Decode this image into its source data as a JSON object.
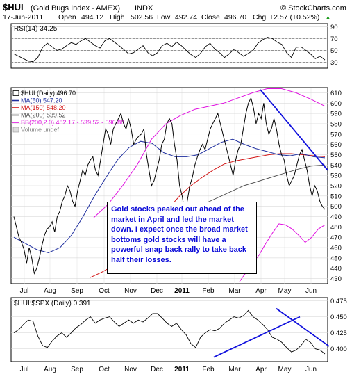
{
  "header": {
    "symbol": "$HUI",
    "description": "(Gold Bugs Index - AMEX)",
    "exchange": "INDX",
    "watermark": "© StockCharts.com",
    "date": "17-Jun-2011",
    "open_label": "Open",
    "open": "494.12",
    "high_label": "High",
    "high": "502.56",
    "low_label": "Low",
    "low": "492.74",
    "close_label": "Close",
    "close": "496.70",
    "chg_label": "Chg",
    "chg": "+2.57 (+0.52%)",
    "chg_arrow": "▲"
  },
  "colors": {
    "price": "#000000",
    "ma50": "#1f2f9f",
    "ma150": "#d21414",
    "ma200": "#555555",
    "bb": "#e010e0",
    "trendline": "#1111dd",
    "note_text": "#0a0ad8",
    "grid": "#d0d0d0"
  },
  "chart_data": [
    {
      "type": "line",
      "title": "RSI(14) 34.25",
      "series": [
        {
          "name": "RSI(14)",
          "values": [
            44,
            40,
            36,
            32,
            31,
            38,
            55,
            62,
            56,
            50,
            52,
            58,
            63,
            60,
            66,
            70,
            64,
            58,
            54,
            66,
            70,
            64,
            58,
            51,
            44,
            46,
            52,
            58,
            46,
            41,
            46,
            58,
            62,
            56,
            64,
            58,
            50,
            43,
            38,
            45,
            56,
            62,
            52,
            46,
            38,
            44,
            52,
            46,
            40,
            45,
            50,
            62,
            68,
            72,
            70,
            64,
            60,
            46,
            38,
            55,
            56,
            50,
            44,
            36,
            40,
            34
          ]
        }
      ],
      "y_ticks": [
        90,
        70,
        50,
        30
      ],
      "ylim": [
        20,
        95
      ],
      "reference_lines": [
        70,
        50,
        30
      ]
    },
    {
      "type": "line",
      "title": "$HUI (Daily) 496.70",
      "x_ticks": [
        "Jul",
        "Aug",
        "Sep",
        "Oct",
        "Nov",
        "Dec",
        "2011",
        "Feb",
        "Mar",
        "Apr",
        "May",
        "Jun"
      ],
      "y_ticks": [
        610,
        600,
        590,
        580,
        570,
        560,
        550,
        540,
        530,
        520,
        510,
        500,
        490,
        480,
        470,
        460,
        450,
        440,
        430
      ],
      "ylim": [
        425,
        615
      ],
      "legend": [
        {
          "label": "$HUI (Daily) 496.70",
          "color": "#000000"
        },
        {
          "label": "MA(50) 547.20",
          "color": "#1f2f9f"
        },
        {
          "label": "MA(150) 548.20",
          "color": "#d21414"
        },
        {
          "label": "MA(200) 539.52",
          "color": "#555555"
        },
        {
          "label": "BB(200,2.0) 482.17 - 539.52 - 596.88",
          "color": "#e010e0"
        },
        {
          "label": "Volume undef",
          "color": "#888888"
        }
      ],
      "series": [
        {
          "name": "$HUI (Daily)",
          "values": [
            490,
            480,
            470,
            465,
            458,
            445,
            460,
            450,
            435,
            440,
            450,
            462,
            472,
            478,
            480,
            485,
            475,
            490,
            495,
            505,
            510,
            520,
            515,
            505,
            500,
            515,
            525,
            535,
            530,
            540,
            545,
            548,
            535,
            530,
            545,
            560,
            575,
            570,
            560,
            575,
            580,
            585,
            590,
            580,
            575,
            585,
            575,
            560,
            565,
            568,
            570,
            575,
            550,
            535,
            520,
            525,
            535,
            545,
            560,
            565,
            580,
            585,
            580,
            560,
            545,
            520,
            510,
            495,
            505,
            520,
            528,
            540,
            548,
            555,
            560,
            555,
            565,
            575,
            580,
            585,
            590,
            580,
            570,
            560,
            550,
            540,
            530,
            545,
            555,
            560,
            575,
            590,
            600,
            605,
            595,
            580,
            590,
            585,
            600,
            580,
            570,
            575,
            585,
            575,
            560,
            550,
            545,
            530,
            520,
            525,
            530,
            540,
            550,
            555,
            545,
            535,
            520,
            510,
            520,
            515,
            505,
            500,
            497
          ]
        },
        {
          "name": "MA(50)",
          "values": [
            470,
            464,
            458,
            455,
            460,
            472,
            490,
            510,
            528,
            545,
            557,
            563,
            561,
            552,
            548,
            548,
            550,
            556,
            562,
            565,
            560,
            556,
            553,
            550,
            549,
            551,
            548,
            547
          ]
        },
        {
          "name": "MA(150)",
          "values": [
            431,
            436,
            442,
            450,
            460,
            472,
            485,
            498,
            510,
            520,
            528,
            535,
            541,
            544,
            546,
            548,
            550,
            551,
            551,
            550,
            549,
            548
          ]
        },
        {
          "name": "MA(200)",
          "values": [
            467,
            472,
            478,
            484,
            490,
            496,
            502,
            508,
            514,
            520,
            524,
            528,
            532,
            536,
            539,
            540
          ]
        },
        {
          "name": "BB upper",
          "values": [
            489,
            502,
            520,
            540,
            565,
            580,
            588,
            594,
            597,
            600,
            605,
            610,
            614,
            614,
            610,
            604,
            597
          ]
        },
        {
          "name": "BB lower",
          "values": [
            427,
            436,
            445,
            453,
            464,
            474,
            483,
            482,
            478,
            472,
            465,
            470,
            478,
            482
          ]
        }
      ],
      "annotations": [
        "Gold stocks peaked out ahead of the market in April and led the market down.  I expect once the broad market bottoms gold stocks will have a powerful snap back rally to take back half their losses."
      ]
    },
    {
      "type": "line",
      "title": "$HUI:$SPX (Daily) 0.391",
      "x_ticks": [
        "Jul",
        "Aug",
        "Sep",
        "Oct",
        "Nov",
        "Dec",
        "2011",
        "Feb",
        "Mar",
        "Apr",
        "May",
        "Jun"
      ],
      "y_ticks": [
        "0.475",
        "0.450",
        "0.425",
        "0.400"
      ],
      "ylim": [
        0.38,
        0.48
      ],
      "series": [
        {
          "name": "$HUI:$SPX",
          "values": [
            0.425,
            0.43,
            0.438,
            0.445,
            0.443,
            0.42,
            0.405,
            0.402,
            0.412,
            0.42,
            0.425,
            0.418,
            0.425,
            0.433,
            0.438,
            0.445,
            0.45,
            0.44,
            0.445,
            0.448,
            0.45,
            0.442,
            0.435,
            0.44,
            0.445,
            0.44,
            0.445,
            0.442,
            0.448,
            0.455,
            0.455,
            0.448,
            0.44,
            0.435,
            0.44,
            0.43,
            0.422,
            0.408,
            0.402,
            0.418,
            0.425,
            0.43,
            0.428,
            0.432,
            0.44,
            0.445,
            0.45,
            0.448,
            0.452,
            0.46,
            0.45,
            0.445,
            0.438,
            0.43,
            0.418,
            0.415,
            0.41,
            0.402,
            0.395,
            0.398,
            0.405,
            0.415,
            0.41,
            0.4,
            0.398,
            0.392
          ]
        }
      ]
    }
  ]
}
